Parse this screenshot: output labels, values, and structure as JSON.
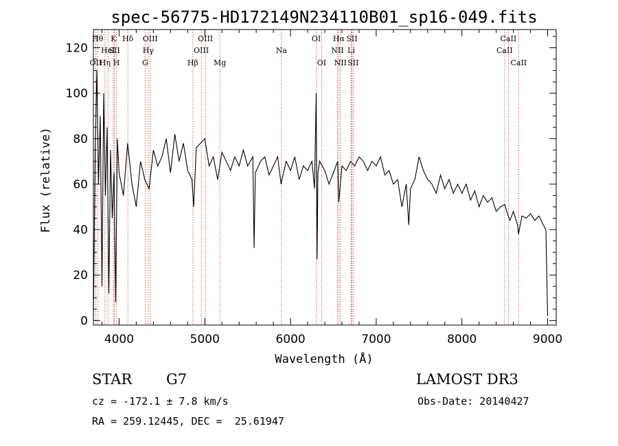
{
  "chart_data": {
    "type": "line",
    "title": "spec-56775-HD172149N234110B01_sp16-049.fits",
    "xlabel": "Wavelength (Å)",
    "ylabel": "Flux (relative)",
    "xlim": [
      3700,
      9100
    ],
    "ylim": [
      -2,
      128
    ],
    "xticks": [
      4000,
      5000,
      6000,
      7000,
      8000,
      9000
    ],
    "yticks": [
      0,
      20,
      40,
      60,
      80,
      100,
      120
    ],
    "series": [
      {
        "name": "spectrum",
        "x": [
          3700,
          3720,
          3740,
          3760,
          3780,
          3800,
          3820,
          3840,
          3860,
          3880,
          3900,
          3920,
          3940,
          3960,
          3980,
          4000,
          4050,
          4100,
          4150,
          4200,
          4250,
          4300,
          4350,
          4400,
          4450,
          4500,
          4550,
          4600,
          4650,
          4700,
          4750,
          4800,
          4850,
          4870,
          4900,
          4950,
          5000,
          5050,
          5100,
          5150,
          5200,
          5250,
          5300,
          5350,
          5400,
          5450,
          5500,
          5560,
          5575,
          5590,
          5650,
          5700,
          5750,
          5800,
          5850,
          5890,
          5900,
          5950,
          6000,
          6050,
          6100,
          6150,
          6200,
          6250,
          6280,
          6300,
          6310,
          6320,
          6340,
          6400,
          6450,
          6500,
          6550,
          6563,
          6600,
          6650,
          6700,
          6750,
          6800,
          6850,
          6900,
          6950,
          7000,
          7050,
          7100,
          7150,
          7200,
          7250,
          7300,
          7350,
          7380,
          7400,
          7450,
          7500,
          7550,
          7600,
          7650,
          7700,
          7750,
          7800,
          7850,
          7900,
          7950,
          8000,
          8050,
          8100,
          8150,
          8200,
          8250,
          8300,
          8350,
          8400,
          8450,
          8500,
          8540,
          8560,
          8600,
          8650,
          8660,
          8700,
          8750,
          8800,
          8850,
          8900,
          8950,
          8980,
          9000
        ],
        "y": [
          0,
          72,
          110,
          60,
          90,
          15,
          100,
          55,
          85,
          12,
          75,
          45,
          65,
          8,
          80,
          65,
          55,
          78,
          60,
          50,
          70,
          62,
          58,
          75,
          68,
          72,
          80,
          65,
          82,
          70,
          78,
          66,
          62,
          50,
          76,
          78,
          80,
          68,
          72,
          62,
          74,
          70,
          66,
          72,
          68,
          75,
          68,
          72,
          32,
          65,
          70,
          72,
          64,
          68,
          72,
          60,
          62,
          70,
          66,
          72,
          62,
          68,
          66,
          70,
          58,
          100,
          27,
          65,
          70,
          66,
          60,
          65,
          70,
          52,
          68,
          66,
          70,
          68,
          72,
          70,
          66,
          70,
          68,
          72,
          64,
          66,
          60,
          62,
          50,
          60,
          42,
          58,
          62,
          72,
          66,
          62,
          60,
          56,
          64,
          58,
          62,
          56,
          60,
          56,
          60,
          53,
          57,
          50,
          55,
          52,
          54,
          48,
          50,
          51,
          46,
          44,
          48,
          42,
          38,
          46,
          45,
          47,
          44,
          46,
          42,
          40,
          2
        ]
      }
    ],
    "line_marks": [
      {
        "label": "OII",
        "wave": 3727,
        "row": 3
      },
      {
        "label": "Hθ",
        "wave": 3750,
        "row": 1
      },
      {
        "label": "Hη",
        "wave": 3835,
        "row": 3
      },
      {
        "label": "HeI",
        "wave": 3870,
        "row": 2
      },
      {
        "label": "K",
        "wave": 3934,
        "row": 1
      },
      {
        "label": "SII",
        "wave": 3945,
        "row": 2
      },
      {
        "label": "H",
        "wave": 3969,
        "row": 3
      },
      {
        "label": "Hδ",
        "wave": 4102,
        "row": 1
      },
      {
        "label": "G",
        "wave": 4304,
        "row": 3
      },
      {
        "label": "Hγ",
        "wave": 4340,
        "row": 2
      },
      {
        "label": "OIII",
        "wave": 4363,
        "row": 1
      },
      {
        "label": "Hβ",
        "wave": 4861,
        "row": 3
      },
      {
        "label": "OIII",
        "wave": 4959,
        "row": 2
      },
      {
        "label": "OIII",
        "wave": 5007,
        "row": 1
      },
      {
        "label": "Mg",
        "wave": 5175,
        "row": 3
      },
      {
        "label": "Na",
        "wave": 5894,
        "row": 2
      },
      {
        "label": "OI",
        "wave": 6300,
        "row": 1
      },
      {
        "label": "OI",
        "wave": 6363,
        "row": 3
      },
      {
        "label": "NII",
        "wave": 6548,
        "row": 2
      },
      {
        "label": "Hα",
        "wave": 6563,
        "row": 1
      },
      {
        "label": "NII",
        "wave": 6583,
        "row": 3
      },
      {
        "label": "Li",
        "wave": 6708,
        "row": 2
      },
      {
        "label": "SII",
        "wave": 6716,
        "row": 1
      },
      {
        "label": "SII",
        "wave": 6731,
        "row": 3
      },
      {
        "label": "CaII",
        "wave": 8498,
        "row": 2
      },
      {
        "label": "CaII",
        "wave": 8542,
        "row": 1
      },
      {
        "label": "CaII",
        "wave": 8662,
        "row": 3
      }
    ]
  },
  "info": {
    "object_class": "STAR",
    "subclass": "G7",
    "survey": "LAMOST DR3",
    "redshift": "cz = -172.1 ± 7.8 km/s",
    "obs_date": "Obs-Date: 20140427",
    "coords": "RA = 259.12445, DEC =  25.61947"
  }
}
